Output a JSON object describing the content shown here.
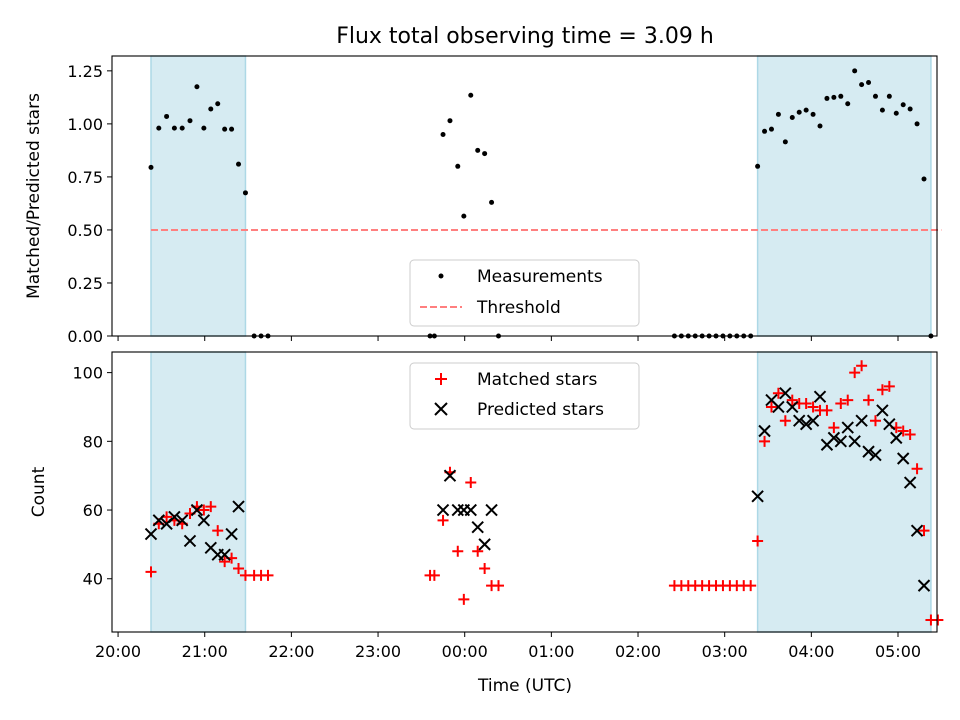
{
  "chart_data": {
    "title": "Flux total observing time = 3.09 h",
    "colors": {
      "band": "#add8e6",
      "measurement": "#000000",
      "threshold": "#ff7f7f",
      "matched": "#ff0000",
      "predicted": "#000000"
    },
    "x_axis": {
      "label": "Time (UTC)",
      "unit": "hours since 20:00 UTC",
      "range": [
        -0.07,
        9.45
      ],
      "ticks": [
        {
          "value": 0,
          "label": "20:00"
        },
        {
          "value": 1,
          "label": "21:00"
        },
        {
          "value": 2,
          "label": "22:00"
        },
        {
          "value": 3,
          "label": "23:00"
        },
        {
          "value": 4,
          "label": "00:00"
        },
        {
          "value": 5,
          "label": "01:00"
        },
        {
          "value": 6,
          "label": "02:00"
        },
        {
          "value": 7,
          "label": "03:00"
        },
        {
          "value": 8,
          "label": "04:00"
        },
        {
          "value": 9,
          "label": "05:00"
        }
      ]
    },
    "observing_windows": [
      {
        "start": 0.38,
        "end": 1.47
      },
      {
        "start": 7.38,
        "end": 9.38
      }
    ],
    "panels": [
      {
        "id": "ratio",
        "type": "scatter",
        "ylabel": "Matched/Predicted stars",
        "ylim": [
          0,
          1.32
        ],
        "yticks": [
          {
            "value": 0,
            "label": "0.00"
          },
          {
            "value": 0.25,
            "label": "0.25"
          },
          {
            "value": 0.5,
            "label": "0.50"
          },
          {
            "value": 0.75,
            "label": "0.75"
          },
          {
            "value": 1.0,
            "label": "1.00"
          },
          {
            "value": 1.25,
            "label": "1.25"
          }
        ],
        "threshold": {
          "name": "Threshold",
          "value": 0.5,
          "x_range": [
            0.38,
            9.5
          ]
        },
        "legend": {
          "placement": "lower-center",
          "entries": [
            "Measurements",
            "Threshold"
          ]
        },
        "series": [
          {
            "name": "Measurements",
            "marker": "dot",
            "points": [
              [
                0.38,
                0.795
              ],
              [
                0.47,
                0.98
              ],
              [
                0.56,
                1.035
              ],
              [
                0.65,
                0.98
              ],
              [
                0.74,
                0.98
              ],
              [
                0.83,
                1.015
              ],
              [
                0.91,
                1.175
              ],
              [
                0.99,
                0.98
              ],
              [
                1.07,
                1.07
              ],
              [
                1.15,
                1.095
              ],
              [
                1.23,
                0.975
              ],
              [
                1.31,
                0.975
              ],
              [
                1.39,
                0.81
              ],
              [
                1.47,
                0.675
              ],
              [
                1.57,
                0.0
              ],
              [
                1.65,
                0.0
              ],
              [
                1.73,
                0.0
              ],
              [
                3.6,
                0.0
              ],
              [
                3.65,
                0.0
              ],
              [
                3.75,
                0.95
              ],
              [
                3.83,
                1.015
              ],
              [
                3.92,
                0.8
              ],
              [
                3.99,
                0.565
              ],
              [
                4.07,
                1.135
              ],
              [
                4.15,
                0.875
              ],
              [
                4.23,
                0.86
              ],
              [
                4.31,
                0.63
              ],
              [
                4.39,
                0.0
              ],
              [
                6.42,
                0.0
              ],
              [
                6.5,
                0.0
              ],
              [
                6.58,
                0.0
              ],
              [
                6.66,
                0.0
              ],
              [
                6.74,
                0.0
              ],
              [
                6.82,
                0.0
              ],
              [
                6.9,
                0.0
              ],
              [
                6.98,
                0.0
              ],
              [
                7.06,
                0.0
              ],
              [
                7.14,
                0.0
              ],
              [
                7.22,
                0.0
              ],
              [
                7.3,
                0.0
              ],
              [
                7.38,
                0.8
              ],
              [
                7.46,
                0.965
              ],
              [
                7.54,
                0.975
              ],
              [
                7.62,
                1.045
              ],
              [
                7.7,
                0.915
              ],
              [
                7.78,
                1.03
              ],
              [
                7.86,
                1.055
              ],
              [
                7.94,
                1.065
              ],
              [
                8.02,
                1.045
              ],
              [
                8.1,
                0.99
              ],
              [
                8.18,
                1.12
              ],
              [
                8.26,
                1.125
              ],
              [
                8.34,
                1.13
              ],
              [
                8.42,
                1.095
              ],
              [
                8.5,
                1.25
              ],
              [
                8.58,
                1.185
              ],
              [
                8.66,
                1.195
              ],
              [
                8.74,
                1.13
              ],
              [
                8.82,
                1.065
              ],
              [
                8.9,
                1.13
              ],
              [
                8.98,
                1.05
              ],
              [
                9.06,
                1.09
              ],
              [
                9.14,
                1.07
              ],
              [
                9.22,
                1.0
              ],
              [
                9.3,
                0.74
              ],
              [
                9.38,
                0.0
              ]
            ]
          }
        ]
      },
      {
        "id": "count",
        "type": "scatter",
        "ylabel": "Count",
        "ylim": [
          24.5,
          106
        ],
        "yticks": [
          {
            "value": 40,
            "label": "40"
          },
          {
            "value": 60,
            "label": "60"
          },
          {
            "value": 80,
            "label": "80"
          },
          {
            "value": 100,
            "label": "100"
          }
        ],
        "legend": {
          "placement": "upper-center",
          "entries": [
            "Matched stars",
            "Predicted stars"
          ]
        },
        "series": [
          {
            "name": "Matched stars",
            "marker": "plus",
            "points": [
              [
                0.38,
                42
              ],
              [
                0.47,
                56
              ],
              [
                0.56,
                58
              ],
              [
                0.65,
                57
              ],
              [
                0.74,
                56
              ],
              [
                0.83,
                59
              ],
              [
                0.91,
                61
              ],
              [
                0.99,
                60
              ],
              [
                1.07,
                61
              ],
              [
                1.15,
                54
              ],
              [
                1.23,
                45
              ],
              [
                1.31,
                46
              ],
              [
                1.39,
                43
              ],
              [
                1.47,
                41
              ],
              [
                1.57,
                41
              ],
              [
                1.65,
                41
              ],
              [
                1.73,
                41
              ],
              [
                3.6,
                41
              ],
              [
                3.65,
                41
              ],
              [
                3.75,
                57
              ],
              [
                3.83,
                71
              ],
              [
                3.92,
                48
              ],
              [
                3.99,
                34
              ],
              [
                4.07,
                68
              ],
              [
                4.15,
                48
              ],
              [
                4.23,
                43
              ],
              [
                4.31,
                38
              ],
              [
                4.39,
                38
              ],
              [
                6.42,
                38
              ],
              [
                6.5,
                38
              ],
              [
                6.58,
                38
              ],
              [
                6.66,
                38
              ],
              [
                6.74,
                38
              ],
              [
                6.82,
                38
              ],
              [
                6.9,
                38
              ],
              [
                6.98,
                38
              ],
              [
                7.06,
                38
              ],
              [
                7.14,
                38
              ],
              [
                7.22,
                38
              ],
              [
                7.3,
                38
              ],
              [
                7.38,
                51
              ],
              [
                7.46,
                80
              ],
              [
                7.54,
                90
              ],
              [
                7.62,
                94
              ],
              [
                7.7,
                86
              ],
              [
                7.78,
                92
              ],
              [
                7.86,
                91
              ],
              [
                7.94,
                91
              ],
              [
                8.02,
                90
              ],
              [
                8.1,
                89
              ],
              [
                8.18,
                89
              ],
              [
                8.26,
                84
              ],
              [
                8.34,
                91
              ],
              [
                8.42,
                92
              ],
              [
                8.5,
                100
              ],
              [
                8.58,
                102
              ],
              [
                8.66,
                92
              ],
              [
                8.74,
                86
              ],
              [
                8.82,
                95
              ],
              [
                8.9,
                96
              ],
              [
                8.98,
                84
              ],
              [
                9.06,
                83
              ],
              [
                9.14,
                82
              ],
              [
                9.22,
                72
              ],
              [
                9.3,
                54
              ],
              [
                9.38,
                28
              ],
              [
                9.46,
                28
              ]
            ]
          },
          {
            "name": "Predicted stars",
            "marker": "cross",
            "points": [
              [
                0.38,
                53
              ],
              [
                0.47,
                57
              ],
              [
                0.56,
                56
              ],
              [
                0.65,
                58
              ],
              [
                0.74,
                57
              ],
              [
                0.83,
                51
              ],
              [
                0.91,
                60
              ],
              [
                0.99,
                57
              ],
              [
                1.07,
                49
              ],
              [
                1.15,
                47
              ],
              [
                1.23,
                47
              ],
              [
                1.31,
                53
              ],
              [
                1.39,
                61
              ],
              [
                3.75,
                60
              ],
              [
                3.83,
                70
              ],
              [
                3.92,
                60
              ],
              [
                3.99,
                60
              ],
              [
                4.07,
                60
              ],
              [
                4.15,
                55
              ],
              [
                4.23,
                50
              ],
              [
                4.31,
                60
              ],
              [
                7.38,
                64
              ],
              [
                7.46,
                83
              ],
              [
                7.54,
                92
              ],
              [
                7.62,
                90
              ],
              [
                7.7,
                94
              ],
              [
                7.78,
                90
              ],
              [
                7.86,
                86
              ],
              [
                7.94,
                85
              ],
              [
                8.02,
                86
              ],
              [
                8.1,
                93
              ],
              [
                8.18,
                79
              ],
              [
                8.26,
                81
              ],
              [
                8.34,
                80
              ],
              [
                8.42,
                84
              ],
              [
                8.5,
                80
              ],
              [
                8.58,
                86
              ],
              [
                8.66,
                77
              ],
              [
                8.74,
                76
              ],
              [
                8.82,
                89
              ],
              [
                8.9,
                85
              ],
              [
                8.98,
                81
              ],
              [
                9.06,
                75
              ],
              [
                9.14,
                68
              ],
              [
                9.22,
                54
              ],
              [
                9.3,
                38
              ]
            ]
          }
        ]
      }
    ]
  }
}
